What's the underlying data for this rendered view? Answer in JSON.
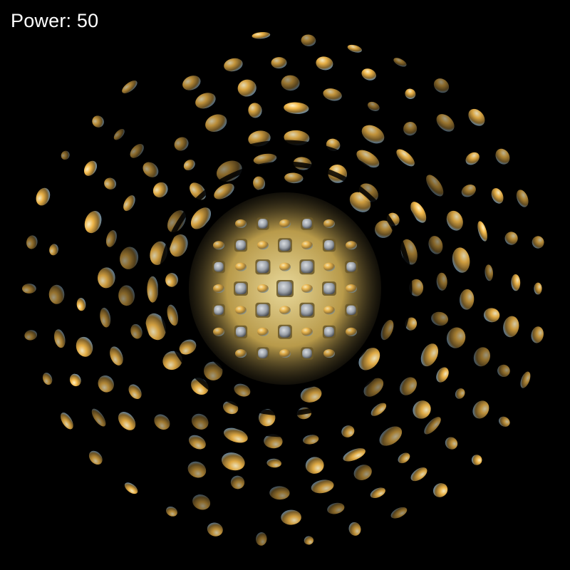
{
  "hud": {
    "power_label": "Power: 50"
  },
  "render": {
    "background_color": "#000000",
    "highlight_color": "#f2b84a",
    "shadow_color": "#6f96b8",
    "inner_cell_color": "#9aa0a8",
    "text_color": "#ffffff"
  }
}
